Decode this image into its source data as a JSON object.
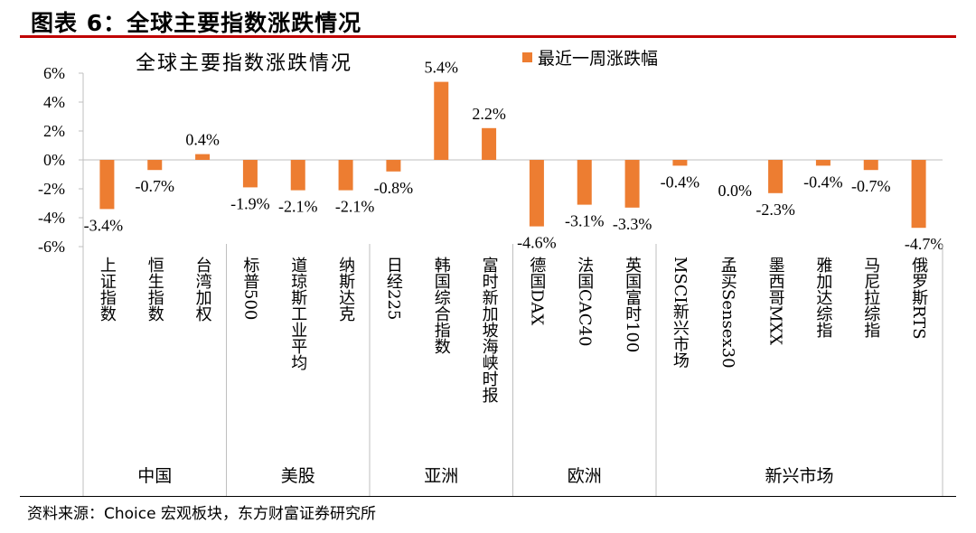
{
  "figure": {
    "title": "图表 6：全球主要指数涨跌情况",
    "source": "资料来源：Choice 宏观板块，东方财富证券研究所"
  },
  "chart_data": {
    "type": "bar",
    "title": "全球主要指数涨跌情况",
    "legend": "最近一周涨跌幅",
    "legend_position": "top",
    "bar_color": "#ed7d31",
    "rule_color": "#c00000",
    "ylim": [
      -6,
      6
    ],
    "yticks": [
      6,
      4,
      2,
      0,
      -2,
      -4,
      -6
    ],
    "ytick_labels": [
      "6%",
      "4%",
      "2%",
      "0%",
      "-2%",
      "-4%",
      "-6%"
    ],
    "categories": [
      "上证指数",
      "恒生指数",
      "台湾加权",
      "标普500",
      "道琼斯工业平均",
      "纳斯达克",
      "日经225",
      "韩国综合指数",
      "富时新加坡海峡时报",
      "德国DAX",
      "法国CAC40",
      "英国富时100",
      "MSCI新兴市场",
      "孟买Sensex30",
      "墨西哥MXX",
      "雅加达综指",
      "马尼拉综指",
      "俄罗斯RTS"
    ],
    "values": [
      -3.4,
      -0.7,
      0.4,
      -1.9,
      -2.1,
      -2.1,
      -0.8,
      5.4,
      2.2,
      -4.6,
      -3.1,
      -3.3,
      -0.4,
      0.0,
      -2.3,
      -0.4,
      -0.7,
      -4.7
    ],
    "value_labels": [
      "-3.4%",
      "-0.7%",
      "0.4%",
      "-1.9%",
      "-2.1%",
      "-2.1%",
      "-0.8%",
      "5.4%",
      "2.2%",
      "-4.6%",
      "-3.1%",
      "-3.3%",
      "-0.4%",
      "0.0%",
      "-2.3%",
      "-0.4%",
      "-0.7%",
      "-4.7%"
    ],
    "groups": [
      {
        "name": "中国",
        "count": 3
      },
      {
        "name": "美股",
        "count": 3
      },
      {
        "name": "亚洲",
        "count": 3
      },
      {
        "name": "欧洲",
        "count": 3
      },
      {
        "name": "新兴市场",
        "count": 6
      }
    ]
  }
}
